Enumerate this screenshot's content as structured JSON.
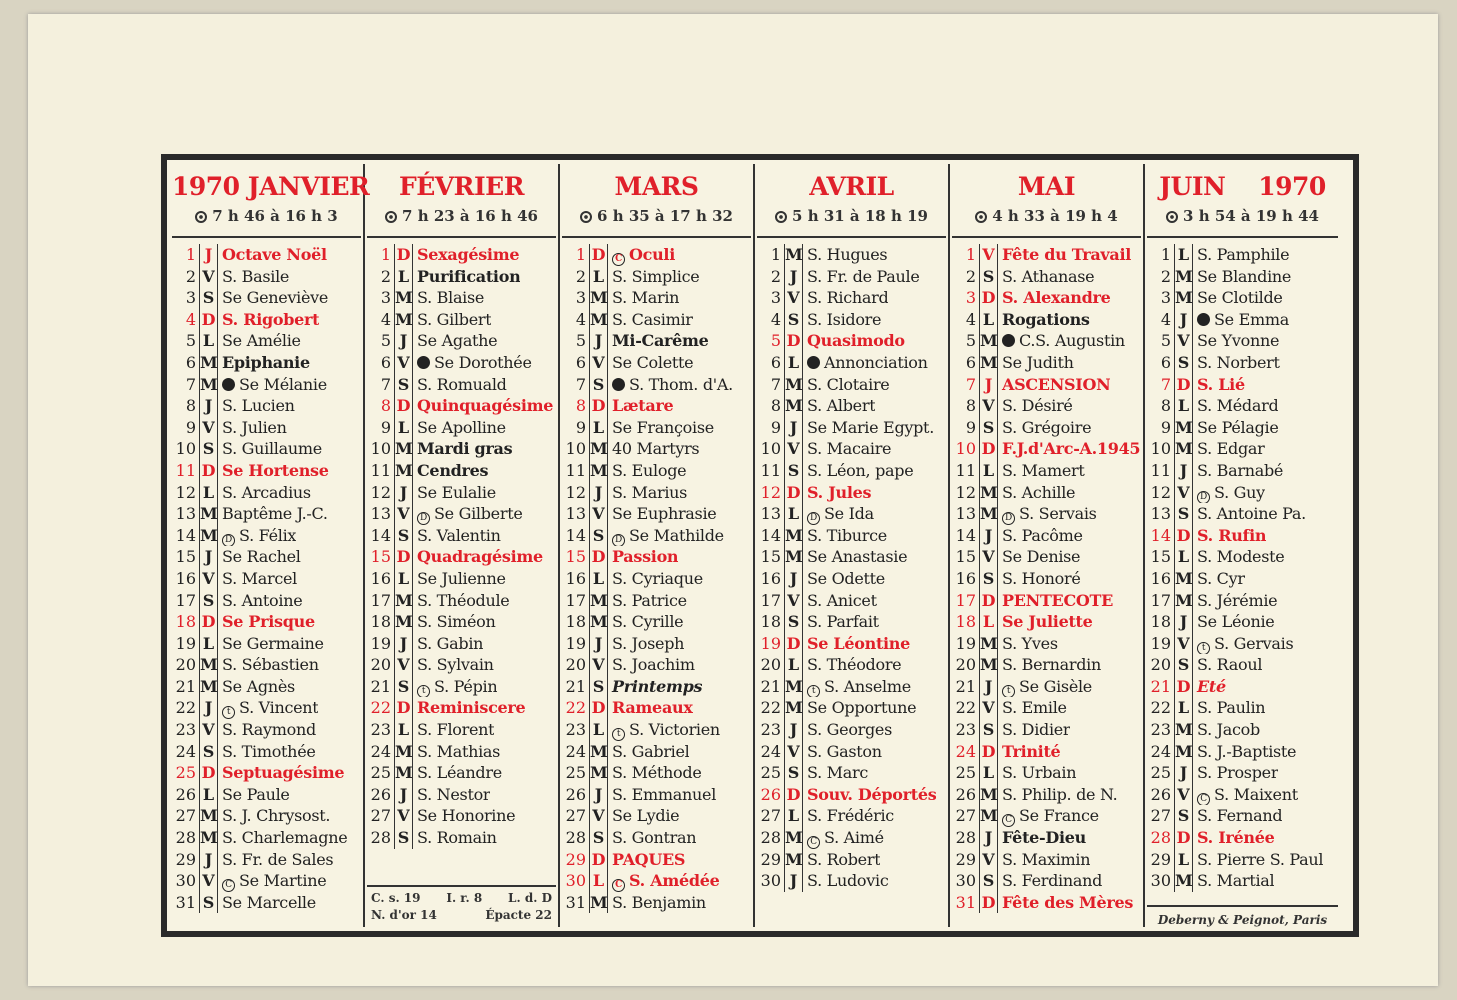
{
  "months": [
    {
      "name": "1970 JANVIER",
      "sun": "7 h 46 à 16 h 3",
      "days": [
        [
          "1",
          "J",
          "Octave Noël",
          "r",
          ""
        ],
        [
          "2",
          "V",
          "S. Basile",
          "",
          ""
        ],
        [
          "3",
          "S",
          "Se Geneviève",
          "",
          ""
        ],
        [
          "4",
          "D",
          "S. Rigobert",
          "r",
          ""
        ],
        [
          "5",
          "L",
          "Se Amélie",
          "",
          ""
        ],
        [
          "6",
          "M",
          "Epiphanie",
          "b",
          ""
        ],
        [
          "7",
          "M",
          "Se Mélanie",
          "",
          "new"
        ],
        [
          "8",
          "J",
          "S. Lucien",
          "",
          ""
        ],
        [
          "9",
          "V",
          "S. Julien",
          "",
          ""
        ],
        [
          "10",
          "S",
          "S. Guillaume",
          "",
          ""
        ],
        [
          "11",
          "D",
          "Se Hortense",
          "r",
          ""
        ],
        [
          "12",
          "L",
          "S. Arcadius",
          "",
          ""
        ],
        [
          "13",
          "M",
          "Baptême J.-C.",
          "",
          ""
        ],
        [
          "14",
          "M",
          "S. Félix",
          "",
          "first-quarter"
        ],
        [
          "15",
          "J",
          "Se Rachel",
          "",
          ""
        ],
        [
          "16",
          "V",
          "S. Marcel",
          "",
          ""
        ],
        [
          "17",
          "S",
          "S. Antoine",
          "",
          ""
        ],
        [
          "18",
          "D",
          "Se Prisque",
          "r",
          ""
        ],
        [
          "19",
          "L",
          "Se Germaine",
          "",
          ""
        ],
        [
          "20",
          "M",
          "S. Sébastien",
          "",
          ""
        ],
        [
          "21",
          "M",
          "Se Agnès",
          "",
          ""
        ],
        [
          "22",
          "J",
          "S. Vincent",
          "",
          "full"
        ],
        [
          "23",
          "V",
          "S. Raymond",
          "",
          ""
        ],
        [
          "24",
          "S",
          "S. Timothée",
          "",
          ""
        ],
        [
          "25",
          "D",
          "Septuagésime",
          "r",
          ""
        ],
        [
          "26",
          "L",
          "Se Paule",
          "",
          ""
        ],
        [
          "27",
          "M",
          "S. J. Chrysost.",
          "",
          ""
        ],
        [
          "28",
          "M",
          "S. Charlemagne",
          "",
          ""
        ],
        [
          "29",
          "J",
          "S. Fr. de Sales",
          "",
          ""
        ],
        [
          "30",
          "V",
          "Se Martine",
          "",
          "last-quarter"
        ],
        [
          "31",
          "S",
          "Se Marcelle",
          "",
          ""
        ]
      ]
    },
    {
      "name": "FÉVRIER",
      "sun": "7 h 23 à 16 h 46",
      "days": [
        [
          "1",
          "D",
          "Sexagésime",
          "r",
          ""
        ],
        [
          "2",
          "L",
          "Purification",
          "b",
          ""
        ],
        [
          "3",
          "M",
          "S. Blaise",
          "",
          ""
        ],
        [
          "4",
          "M",
          "S. Gilbert",
          "",
          ""
        ],
        [
          "5",
          "J",
          "Se Agathe",
          "",
          ""
        ],
        [
          "6",
          "V",
          "Se Dorothée",
          "",
          "new"
        ],
        [
          "7",
          "S",
          "S. Romuald",
          "",
          ""
        ],
        [
          "8",
          "D",
          "Quinquagésime",
          "r",
          ""
        ],
        [
          "9",
          "L",
          "Se Apolline",
          "",
          ""
        ],
        [
          "10",
          "M",
          "Mardi gras",
          "b",
          ""
        ],
        [
          "11",
          "M",
          "Cendres",
          "b",
          ""
        ],
        [
          "12",
          "J",
          "Se Eulalie",
          "",
          ""
        ],
        [
          "13",
          "V",
          "Se Gilberte",
          "",
          "first-quarter"
        ],
        [
          "14",
          "S",
          "S. Valentin",
          "",
          ""
        ],
        [
          "15",
          "D",
          "Quadragésime",
          "r",
          ""
        ],
        [
          "16",
          "L",
          "Se Julienne",
          "",
          ""
        ],
        [
          "17",
          "M",
          "S. Théodule",
          "",
          ""
        ],
        [
          "18",
          "M",
          "S. Siméon",
          "",
          ""
        ],
        [
          "19",
          "J",
          "S. Gabin",
          "",
          ""
        ],
        [
          "20",
          "V",
          "S. Sylvain",
          "",
          ""
        ],
        [
          "21",
          "S",
          "S. Pépin",
          "",
          "full"
        ],
        [
          "22",
          "D",
          "Reminiscere",
          "r",
          ""
        ],
        [
          "23",
          "L",
          "S. Florent",
          "",
          ""
        ],
        [
          "24",
          "M",
          "S. Mathias",
          "",
          ""
        ],
        [
          "25",
          "M",
          "S. Léandre",
          "",
          ""
        ],
        [
          "26",
          "J",
          "S. Nestor",
          "",
          ""
        ],
        [
          "27",
          "V",
          "Se Honorine",
          "",
          ""
        ],
        [
          "28",
          "S",
          "S. Romain",
          "",
          ""
        ]
      ],
      "footer": {
        "line1": [
          "C. s. 19",
          "I. r. 8",
          "L. d. D"
        ],
        "line2": [
          "N. d'or 14",
          "Épacte 22"
        ]
      }
    },
    {
      "name": "MARS",
      "sun": "6 h 35 à 17 h 32",
      "days": [
        [
          "1",
          "D",
          "Oculi",
          "r",
          "last-quarter"
        ],
        [
          "2",
          "L",
          "S. Simplice",
          "",
          ""
        ],
        [
          "3",
          "M",
          "S. Marin",
          "",
          ""
        ],
        [
          "4",
          "M",
          "S. Casimir",
          "",
          ""
        ],
        [
          "5",
          "J",
          "Mi-Carême",
          "b",
          ""
        ],
        [
          "6",
          "V",
          "Se Colette",
          "",
          ""
        ],
        [
          "7",
          "S",
          "S. Thom. d'A.",
          "",
          "new"
        ],
        [
          "8",
          "D",
          "Lætare",
          "r",
          ""
        ],
        [
          "9",
          "L",
          "Se Françoise",
          "",
          ""
        ],
        [
          "10",
          "M",
          "40 Martyrs",
          "",
          ""
        ],
        [
          "11",
          "M",
          "S. Euloge",
          "",
          ""
        ],
        [
          "12",
          "J",
          "S. Marius",
          "",
          ""
        ],
        [
          "13",
          "V",
          "Se Euphrasie",
          "",
          ""
        ],
        [
          "14",
          "S",
          "Se Mathilde",
          "",
          "first-quarter"
        ],
        [
          "15",
          "D",
          "Passion",
          "r",
          ""
        ],
        [
          "16",
          "L",
          "S. Cyriaque",
          "",
          ""
        ],
        [
          "17",
          "M",
          "S. Patrice",
          "",
          ""
        ],
        [
          "18",
          "M",
          "S. Cyrille",
          "",
          ""
        ],
        [
          "19",
          "J",
          "S. Joseph",
          "",
          ""
        ],
        [
          "20",
          "V",
          "S. Joachim",
          "",
          ""
        ],
        [
          "21",
          "S",
          "Printemps",
          "i",
          ""
        ],
        [
          "22",
          "D",
          "Rameaux",
          "r",
          ""
        ],
        [
          "23",
          "L",
          "S. Victorien",
          "",
          "full"
        ],
        [
          "24",
          "M",
          "S. Gabriel",
          "",
          ""
        ],
        [
          "25",
          "M",
          "S. Méthode",
          "",
          ""
        ],
        [
          "26",
          "J",
          "S. Emmanuel",
          "",
          ""
        ],
        [
          "27",
          "V",
          "Se Lydie",
          "",
          ""
        ],
        [
          "28",
          "S",
          "S. Gontran",
          "",
          ""
        ],
        [
          "29",
          "D",
          "PAQUES",
          "r",
          ""
        ],
        [
          "30",
          "L",
          "S. Amédée",
          "r",
          "last-quarter"
        ],
        [
          "31",
          "M",
          "S. Benjamin",
          "",
          ""
        ]
      ]
    },
    {
      "name": "AVRIL",
      "sun": "5 h 31 à 18 h 19",
      "days": [
        [
          "1",
          "M",
          "S. Hugues",
          "",
          ""
        ],
        [
          "2",
          "J",
          "S. Fr. de Paule",
          "",
          ""
        ],
        [
          "3",
          "V",
          "S. Richard",
          "",
          ""
        ],
        [
          "4",
          "S",
          "S. Isidore",
          "",
          ""
        ],
        [
          "5",
          "D",
          "Quasimodo",
          "r",
          ""
        ],
        [
          "6",
          "L",
          "Annonciation",
          "",
          "new"
        ],
        [
          "7",
          "M",
          "S. Clotaire",
          "",
          ""
        ],
        [
          "8",
          "M",
          "S. Albert",
          "",
          ""
        ],
        [
          "9",
          "J",
          "Se Marie Egypt.",
          "",
          ""
        ],
        [
          "10",
          "V",
          "S. Macaire",
          "",
          ""
        ],
        [
          "11",
          "S",
          "S. Léon, pape",
          "",
          ""
        ],
        [
          "12",
          "D",
          "S. Jules",
          "r",
          ""
        ],
        [
          "13",
          "L",
          "Se Ida",
          "",
          "first-quarter"
        ],
        [
          "14",
          "M",
          "S. Tiburce",
          "",
          ""
        ],
        [
          "15",
          "M",
          "Se Anastasie",
          "",
          ""
        ],
        [
          "16",
          "J",
          "Se Odette",
          "",
          ""
        ],
        [
          "17",
          "V",
          "S. Anicet",
          "",
          ""
        ],
        [
          "18",
          "S",
          "S. Parfait",
          "",
          ""
        ],
        [
          "19",
          "D",
          "Se Léontine",
          "r",
          ""
        ],
        [
          "20",
          "L",
          "S. Théodore",
          "",
          ""
        ],
        [
          "21",
          "M",
          "S. Anselme",
          "",
          "full"
        ],
        [
          "22",
          "M",
          "Se Opportune",
          "",
          ""
        ],
        [
          "23",
          "J",
          "S. Georges",
          "",
          ""
        ],
        [
          "24",
          "V",
          "S. Gaston",
          "",
          ""
        ],
        [
          "25",
          "S",
          "S. Marc",
          "",
          ""
        ],
        [
          "26",
          "D",
          "Souv. Déportés",
          "r",
          ""
        ],
        [
          "27",
          "L",
          "S. Frédéric",
          "",
          ""
        ],
        [
          "28",
          "M",
          "S. Aimé",
          "",
          "last-quarter"
        ],
        [
          "29",
          "M",
          "S. Robert",
          "",
          ""
        ],
        [
          "30",
          "J",
          "S. Ludovic",
          "",
          ""
        ]
      ]
    },
    {
      "name": "MAI",
      "sun": "4 h 33 à 19 h 4",
      "days": [
        [
          "1",
          "V",
          "Fête du Travail",
          "r",
          ""
        ],
        [
          "2",
          "S",
          "S. Athanase",
          "",
          ""
        ],
        [
          "3",
          "D",
          "S. Alexandre",
          "r",
          ""
        ],
        [
          "4",
          "L",
          "Rogations",
          "b",
          ""
        ],
        [
          "5",
          "M",
          "C.S. Augustin",
          "",
          "new"
        ],
        [
          "6",
          "M",
          "Se Judith",
          "",
          ""
        ],
        [
          "7",
          "J",
          "ASCENSION",
          "r",
          ""
        ],
        [
          "8",
          "V",
          "S. Désiré",
          "",
          ""
        ],
        [
          "9",
          "S",
          "S. Grégoire",
          "",
          ""
        ],
        [
          "10",
          "D",
          "F.J.d'Arc-A.1945",
          "r",
          ""
        ],
        [
          "11",
          "L",
          "S. Mamert",
          "",
          ""
        ],
        [
          "12",
          "M",
          "S. Achille",
          "",
          ""
        ],
        [
          "13",
          "M",
          "S. Servais",
          "",
          "first-quarter"
        ],
        [
          "14",
          "J",
          "S. Pacôme",
          "",
          ""
        ],
        [
          "15",
          "V",
          "Se Denise",
          "",
          ""
        ],
        [
          "16",
          "S",
          "S. Honoré",
          "",
          ""
        ],
        [
          "17",
          "D",
          "PENTECOTE",
          "r",
          ""
        ],
        [
          "18",
          "L",
          "Se Juliette",
          "r",
          ""
        ],
        [
          "19",
          "M",
          "S. Yves",
          "",
          ""
        ],
        [
          "20",
          "M",
          "S. Bernardin",
          "",
          ""
        ],
        [
          "21",
          "J",
          "Se Gisèle",
          "",
          "full"
        ],
        [
          "22",
          "V",
          "S. Emile",
          "",
          ""
        ],
        [
          "23",
          "S",
          "S. Didier",
          "",
          ""
        ],
        [
          "24",
          "D",
          "Trinité",
          "r",
          ""
        ],
        [
          "25",
          "L",
          "S. Urbain",
          "",
          ""
        ],
        [
          "26",
          "M",
          "S. Philip. de N.",
          "",
          ""
        ],
        [
          "27",
          "M",
          "Se France",
          "",
          "last-quarter"
        ],
        [
          "28",
          "J",
          "Fête-Dieu",
          "b",
          ""
        ],
        [
          "29",
          "V",
          "S. Maximin",
          "",
          ""
        ],
        [
          "30",
          "S",
          "S. Ferdinand",
          "",
          ""
        ],
        [
          "31",
          "D",
          "Fête des Mères",
          "r",
          ""
        ]
      ]
    },
    {
      "name": "JUIN    1970",
      "sun": "3 h 54 à 19 h 44",
      "days": [
        [
          "1",
          "L",
          "S. Pamphile",
          "",
          ""
        ],
        [
          "2",
          "M",
          "Se Blandine",
          "",
          ""
        ],
        [
          "3",
          "M",
          "Se Clotilde",
          "",
          ""
        ],
        [
          "4",
          "J",
          "Se Emma",
          "",
          "new"
        ],
        [
          "5",
          "V",
          "Se Yvonne",
          "",
          ""
        ],
        [
          "6",
          "S",
          "S. Norbert",
          "",
          ""
        ],
        [
          "7",
          "D",
          "S. Lié",
          "r",
          ""
        ],
        [
          "8",
          "L",
          "S. Médard",
          "",
          ""
        ],
        [
          "9",
          "M",
          "Se Pélagie",
          "",
          ""
        ],
        [
          "10",
          "M",
          "S. Edgar",
          "",
          ""
        ],
        [
          "11",
          "J",
          "S. Barnabé",
          "",
          ""
        ],
        [
          "12",
          "V",
          "S. Guy",
          "",
          "first-quarter"
        ],
        [
          "13",
          "S",
          "S. Antoine Pa.",
          "",
          ""
        ],
        [
          "14",
          "D",
          "S. Rufin",
          "r",
          ""
        ],
        [
          "15",
          "L",
          "S. Modeste",
          "",
          ""
        ],
        [
          "16",
          "M",
          "S. Cyr",
          "",
          ""
        ],
        [
          "17",
          "M",
          "S. Jérémie",
          "",
          ""
        ],
        [
          "18",
          "J",
          "Se Léonie",
          "",
          ""
        ],
        [
          "19",
          "V",
          "S. Gervais",
          "",
          "full"
        ],
        [
          "20",
          "S",
          "S. Raoul",
          "",
          ""
        ],
        [
          "21",
          "D",
          "Eté",
          "ri",
          ""
        ],
        [
          "22",
          "L",
          "S. Paulin",
          "",
          ""
        ],
        [
          "23",
          "M",
          "S. Jacob",
          "",
          ""
        ],
        [
          "24",
          "M",
          "S. J.-Baptiste",
          "",
          ""
        ],
        [
          "25",
          "J",
          "S. Prosper",
          "",
          ""
        ],
        [
          "26",
          "V",
          "S. Maixent",
          "",
          "last-quarter"
        ],
        [
          "27",
          "S",
          "S. Fernand",
          "",
          ""
        ],
        [
          "28",
          "D",
          "S. Irénée",
          "r",
          ""
        ],
        [
          "29",
          "L",
          "S. Pierre S. Paul",
          "",
          ""
        ],
        [
          "30",
          "M",
          "S. Martial",
          "",
          ""
        ]
      ],
      "publisher": "Deberny & Peignot, Paris"
    }
  ],
  "colors": {
    "red": "#e0202a",
    "ink": "#222222",
    "paper": "#f4f0dd"
  }
}
